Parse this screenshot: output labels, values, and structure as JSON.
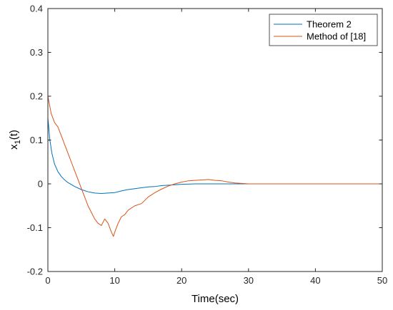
{
  "chart_data": {
    "type": "line",
    "xlabel": "Time(sec)",
    "ylabel_main": "x",
    "ylabel_sub": "1",
    "ylabel_tail": "(t)",
    "xlim": [
      0,
      50
    ],
    "ylim": [
      -0.2,
      0.4
    ],
    "grid": false,
    "legend_position": "top-right",
    "x_ticks": [
      0,
      10,
      20,
      30,
      40,
      50
    ],
    "x_tick_labels": [
      "0",
      "10",
      "20",
      "30",
      "40",
      "50"
    ],
    "y_ticks": [
      -0.2,
      -0.1,
      0,
      0.1,
      0.2,
      0.3,
      0.4
    ],
    "y_tick_labels": [
      "-0.2",
      "-0.1",
      "0",
      "0.1",
      "0.2",
      "0.3",
      "0.4"
    ],
    "series": [
      {
        "name": "Theorem 2",
        "color": "#0072BD",
        "x": [
          0,
          0.3,
          0.6,
          1,
          1.5,
          2,
          2.5,
          3,
          4,
          5,
          6,
          7,
          8,
          9,
          10,
          11,
          12,
          13,
          14,
          15,
          16,
          17,
          18,
          19,
          20,
          22,
          24,
          26,
          28,
          30,
          35,
          40,
          45,
          50
        ],
        "y": [
          0.15,
          0.1,
          0.07,
          0.045,
          0.028,
          0.017,
          0.009,
          0.003,
          -0.006,
          -0.013,
          -0.018,
          -0.021,
          -0.022,
          -0.021,
          -0.02,
          -0.016,
          -0.013,
          -0.011,
          -0.009,
          -0.007,
          -0.006,
          -0.004,
          -0.003,
          -0.002,
          -0.001,
          0.0,
          0.0,
          0.0,
          0.0,
          0.0,
          0.0,
          0.0,
          0.0,
          0.0
        ]
      },
      {
        "name": "Method of [18]",
        "color": "#D95319",
        "x": [
          0,
          0.5,
          1,
          1.5,
          2,
          2.5,
          3,
          3.5,
          4,
          4.5,
          5,
          5.5,
          6,
          6.5,
          7,
          7.5,
          8,
          8.5,
          9,
          9.5,
          9.8,
          10,
          10.5,
          11,
          11.5,
          12,
          13,
          14,
          15,
          16,
          17,
          18,
          19,
          20,
          21,
          22,
          23,
          24,
          25,
          26,
          27,
          28,
          29,
          30,
          32,
          35,
          40,
          45,
          50
        ],
        "y": [
          0.2,
          0.16,
          0.14,
          0.13,
          0.11,
          0.09,
          0.07,
          0.05,
          0.03,
          0.01,
          -0.01,
          -0.03,
          -0.05,
          -0.065,
          -0.08,
          -0.09,
          -0.095,
          -0.08,
          -0.09,
          -0.11,
          -0.12,
          -0.11,
          -0.09,
          -0.075,
          -0.07,
          -0.06,
          -0.05,
          -0.045,
          -0.03,
          -0.02,
          -0.012,
          -0.005,
          0.0,
          0.004,
          0.007,
          0.008,
          0.009,
          0.01,
          0.008,
          0.007,
          0.004,
          0.002,
          0.001,
          0.0,
          0.0,
          0.0,
          0.0,
          0.0,
          0.0
        ]
      }
    ]
  }
}
